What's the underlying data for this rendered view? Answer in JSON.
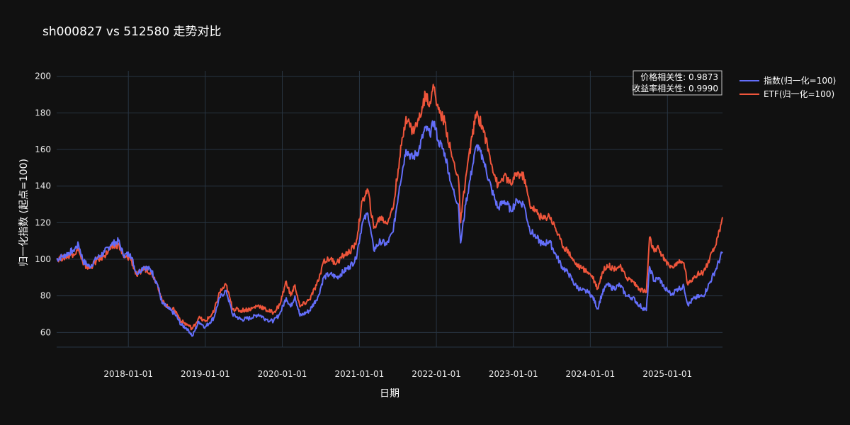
{
  "chart_data": {
    "type": "line",
    "title": "sh000827 vs 512580 走势对比",
    "xlabel": "日期",
    "ylabel": "归一化指数 (起点=100)",
    "xlim": [
      "2017-01-26",
      "2025-09-19"
    ],
    "ylim": [
      52,
      203
    ],
    "x_ticks": [
      "2018-01-01",
      "2019-01-01",
      "2020-01-01",
      "2021-01-01",
      "2022-01-01",
      "2023-01-01",
      "2024-01-01",
      "2025-01-01"
    ],
    "y_ticks": [
      60,
      80,
      100,
      120,
      140,
      160,
      180,
      200
    ],
    "grid": true,
    "legend_position": "top-right outside",
    "annotation": {
      "line1": "价格相关性: 0.9873",
      "line2": "收益率相关性: 0.9990",
      "position": "top-right"
    },
    "series": [
      {
        "name": "指数(归一化=100)",
        "color": "#636efa",
        "points": [
          [
            "2017-01-26",
            100
          ],
          [
            "2017-03-01",
            102
          ],
          [
            "2017-04-15",
            105
          ],
          [
            "2017-05-10",
            108
          ],
          [
            "2017-06-01",
            99
          ],
          [
            "2017-07-01",
            96
          ],
          [
            "2017-08-01",
            100
          ],
          [
            "2017-09-10",
            104
          ],
          [
            "2017-10-10",
            108
          ],
          [
            "2017-11-15",
            110
          ],
          [
            "2017-12-10",
            102
          ],
          [
            "2018-01-10",
            103
          ],
          [
            "2018-02-10",
            92
          ],
          [
            "2018-03-15",
            96
          ],
          [
            "2018-04-20",
            94
          ],
          [
            "2018-05-20",
            86
          ],
          [
            "2018-06-10",
            76
          ],
          [
            "2018-07-10",
            73
          ],
          [
            "2018-08-10",
            70
          ],
          [
            "2018-09-10",
            64
          ],
          [
            "2018-10-10",
            62
          ],
          [
            "2018-11-01",
            58
          ],
          [
            "2018-12-01",
            66
          ],
          [
            "2019-01-01",
            63
          ],
          [
            "2019-02-10",
            68
          ],
          [
            "2019-03-10",
            79
          ],
          [
            "2019-04-10",
            83
          ],
          [
            "2019-05-10",
            70
          ],
          [
            "2019-06-20",
            67
          ],
          [
            "2019-08-10",
            68
          ],
          [
            "2019-09-10",
            70
          ],
          [
            "2019-10-20",
            67
          ],
          [
            "2019-11-20",
            66
          ],
          [
            "2019-12-20",
            70
          ],
          [
            "2020-01-20",
            79
          ],
          [
            "2020-02-10",
            74
          ],
          [
            "2020-03-01",
            80
          ],
          [
            "2020-03-25",
            69
          ],
          [
            "2020-05-10",
            72
          ],
          [
            "2020-06-20",
            80
          ],
          [
            "2020-07-15",
            90
          ],
          [
            "2020-08-15",
            92
          ],
          [
            "2020-09-15",
            90
          ],
          [
            "2020-10-15",
            93
          ],
          [
            "2020-11-15",
            96
          ],
          [
            "2020-12-15",
            100
          ],
          [
            "2021-01-15",
            120
          ],
          [
            "2021-02-10",
            125
          ],
          [
            "2021-03-10",
            105
          ],
          [
            "2021-04-10",
            110
          ],
          [
            "2021-05-10",
            108
          ],
          [
            "2021-06-10",
            115
          ],
          [
            "2021-07-10",
            140
          ],
          [
            "2021-08-10",
            160
          ],
          [
            "2021-09-10",
            155
          ],
          [
            "2021-10-10",
            160
          ],
          [
            "2021-11-10",
            172
          ],
          [
            "2021-12-01",
            168
          ],
          [
            "2021-12-20",
            175
          ],
          [
            "2022-01-10",
            165
          ],
          [
            "2022-02-10",
            158
          ],
          [
            "2022-03-15",
            140
          ],
          [
            "2022-04-15",
            130
          ],
          [
            "2022-04-26",
            109
          ],
          [
            "2022-05-20",
            130
          ],
          [
            "2022-06-20",
            150
          ],
          [
            "2022-07-10",
            162
          ],
          [
            "2022-08-10",
            155
          ],
          [
            "2022-09-20",
            138
          ],
          [
            "2022-10-20",
            128
          ],
          [
            "2022-11-20",
            132
          ],
          [
            "2022-12-20",
            127
          ],
          [
            "2023-01-20",
            132
          ],
          [
            "2023-02-20",
            130
          ],
          [
            "2023-03-20",
            116
          ],
          [
            "2023-04-20",
            112
          ],
          [
            "2023-05-20",
            108
          ],
          [
            "2023-06-20",
            110
          ],
          [
            "2023-07-20",
            103
          ],
          [
            "2023-08-20",
            96
          ],
          [
            "2023-09-20",
            92
          ],
          [
            "2023-10-20",
            86
          ],
          [
            "2023-11-20",
            83
          ],
          [
            "2023-12-20",
            82
          ],
          [
            "2024-01-10",
            80
          ],
          [
            "2024-02-05",
            73
          ],
          [
            "2024-02-25",
            81
          ],
          [
            "2024-03-20",
            86
          ],
          [
            "2024-04-20",
            84
          ],
          [
            "2024-05-20",
            86
          ],
          [
            "2024-06-20",
            80
          ],
          [
            "2024-07-20",
            79
          ],
          [
            "2024-08-20",
            75
          ],
          [
            "2024-09-23",
            72
          ],
          [
            "2024-10-08",
            96
          ],
          [
            "2024-10-30",
            88
          ],
          [
            "2024-11-20",
            90
          ],
          [
            "2024-12-20",
            84
          ],
          [
            "2025-01-20",
            81
          ],
          [
            "2025-02-20",
            84
          ],
          [
            "2025-03-20",
            85
          ],
          [
            "2025-04-08",
            75
          ],
          [
            "2025-05-10",
            79
          ],
          [
            "2025-06-20",
            80
          ],
          [
            "2025-07-20",
            87
          ],
          [
            "2025-08-20",
            95
          ],
          [
            "2025-09-19",
            104
          ]
        ]
      },
      {
        "name": "ETF(归一化=100)",
        "color": "#ef553b",
        "points": [
          [
            "2017-01-26",
            100
          ],
          [
            "2017-03-01",
            101
          ],
          [
            "2017-04-15",
            103
          ],
          [
            "2017-05-10",
            105
          ],
          [
            "2017-06-01",
            97
          ],
          [
            "2017-07-01",
            95
          ],
          [
            "2017-08-01",
            99
          ],
          [
            "2017-09-10",
            102
          ],
          [
            "2017-10-10",
            106
          ],
          [
            "2017-11-15",
            108
          ],
          [
            "2017-12-10",
            101
          ],
          [
            "2018-01-10",
            101
          ],
          [
            "2018-02-10",
            91
          ],
          [
            "2018-03-15",
            95
          ],
          [
            "2018-04-20",
            93
          ],
          [
            "2018-05-20",
            86
          ],
          [
            "2018-06-10",
            77
          ],
          [
            "2018-07-10",
            74
          ],
          [
            "2018-08-10",
            72
          ],
          [
            "2018-09-10",
            66
          ],
          [
            "2018-10-10",
            64
          ],
          [
            "2018-11-01",
            62
          ],
          [
            "2018-12-01",
            68
          ],
          [
            "2019-01-01",
            66
          ],
          [
            "2019-02-10",
            71
          ],
          [
            "2019-03-10",
            82
          ],
          [
            "2019-04-10",
            86
          ],
          [
            "2019-05-10",
            73
          ],
          [
            "2019-06-20",
            72
          ],
          [
            "2019-08-10",
            73
          ],
          [
            "2019-09-10",
            75
          ],
          [
            "2019-10-20",
            72
          ],
          [
            "2019-11-20",
            71
          ],
          [
            "2019-12-20",
            75
          ],
          [
            "2020-01-20",
            88
          ],
          [
            "2020-02-10",
            80
          ],
          [
            "2020-03-01",
            86
          ],
          [
            "2020-03-25",
            74
          ],
          [
            "2020-05-10",
            78
          ],
          [
            "2020-06-20",
            88
          ],
          [
            "2020-07-15",
            99
          ],
          [
            "2020-08-15",
            100
          ],
          [
            "2020-09-15",
            98
          ],
          [
            "2020-10-15",
            102
          ],
          [
            "2020-11-15",
            104
          ],
          [
            "2020-12-15",
            108
          ],
          [
            "2021-01-15",
            132
          ],
          [
            "2021-02-10",
            138
          ],
          [
            "2021-03-10",
            117
          ],
          [
            "2021-04-10",
            123
          ],
          [
            "2021-05-10",
            120
          ],
          [
            "2021-06-10",
            128
          ],
          [
            "2021-07-10",
            155
          ],
          [
            "2021-08-10",
            178
          ],
          [
            "2021-09-10",
            170
          ],
          [
            "2021-10-10",
            176
          ],
          [
            "2021-11-10",
            190
          ],
          [
            "2021-12-01",
            186
          ],
          [
            "2021-12-20",
            194
          ],
          [
            "2022-01-10",
            182
          ],
          [
            "2022-02-10",
            175
          ],
          [
            "2022-03-15",
            156
          ],
          [
            "2022-04-15",
            145
          ],
          [
            "2022-04-26",
            120
          ],
          [
            "2022-05-20",
            145
          ],
          [
            "2022-06-20",
            167
          ],
          [
            "2022-07-10",
            180
          ],
          [
            "2022-08-10",
            172
          ],
          [
            "2022-09-20",
            152
          ],
          [
            "2022-10-20",
            140
          ],
          [
            "2022-11-20",
            146
          ],
          [
            "2022-12-20",
            141
          ],
          [
            "2023-01-20",
            147
          ],
          [
            "2023-02-20",
            145
          ],
          [
            "2023-03-20",
            130
          ],
          [
            "2023-04-20",
            126
          ],
          [
            "2023-05-20",
            122
          ],
          [
            "2023-06-20",
            124
          ],
          [
            "2023-07-20",
            117
          ],
          [
            "2023-08-20",
            108
          ],
          [
            "2023-09-20",
            104
          ],
          [
            "2023-10-20",
            98
          ],
          [
            "2023-11-20",
            95
          ],
          [
            "2023-12-20",
            93
          ],
          [
            "2024-01-10",
            91
          ],
          [
            "2024-02-05",
            84
          ],
          [
            "2024-02-25",
            92
          ],
          [
            "2024-03-20",
            97
          ],
          [
            "2024-04-20",
            95
          ],
          [
            "2024-05-20",
            96
          ],
          [
            "2024-06-20",
            90
          ],
          [
            "2024-07-20",
            88
          ],
          [
            "2024-08-20",
            84
          ],
          [
            "2024-09-23",
            82
          ],
          [
            "2024-10-08",
            112
          ],
          [
            "2024-10-30",
            104
          ],
          [
            "2024-11-20",
            106
          ],
          [
            "2024-12-20",
            99
          ],
          [
            "2025-01-20",
            96
          ],
          [
            "2025-02-20",
            98
          ],
          [
            "2025-03-20",
            98
          ],
          [
            "2025-04-08",
            86
          ],
          [
            "2025-05-10",
            91
          ],
          [
            "2025-06-20",
            93
          ],
          [
            "2025-07-20",
            100
          ],
          [
            "2025-08-20",
            108
          ],
          [
            "2025-09-19",
            123
          ]
        ]
      }
    ]
  }
}
